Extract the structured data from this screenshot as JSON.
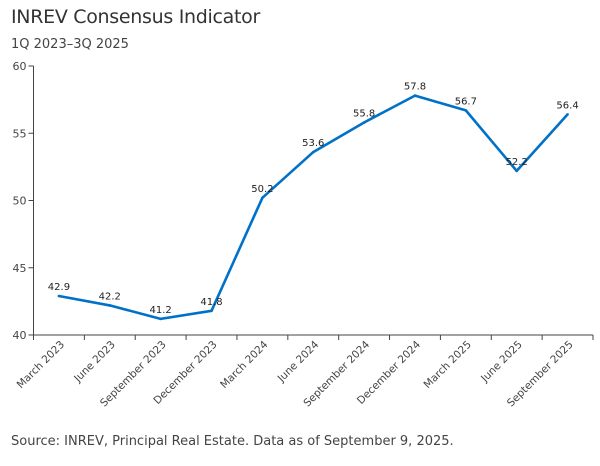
{
  "chart_data": {
    "type": "line",
    "title": "INREV Consensus Indicator",
    "subtitle": "1Q 2023–3Q 2025",
    "source": "Source: INREV, Principal Real Estate. Data as of September 9, 2025.",
    "categories": [
      "March 2023",
      "June 2023",
      "September 2023",
      "December 2023",
      "March 2024",
      "June 2024",
      "September 2024",
      "December 2024",
      "March 2025",
      "June 2025",
      "September 2025"
    ],
    "values": [
      42.9,
      42.2,
      41.2,
      41.8,
      50.2,
      53.6,
      55.8,
      57.8,
      56.7,
      52.2,
      56.4
    ],
    "data_labels": [
      "42.9",
      "42.2",
      "41.2",
      "41.8",
      "50.2",
      "53.6",
      "55.8",
      "57.8",
      "56.7",
      "52.2",
      "56.4"
    ],
    "ylim": [
      40,
      60
    ],
    "yticks": [
      "40",
      "45",
      "50",
      "55",
      "60"
    ],
    "xlabel": "",
    "ylabel": "",
    "grid": false,
    "line_color": "#0071c9"
  }
}
